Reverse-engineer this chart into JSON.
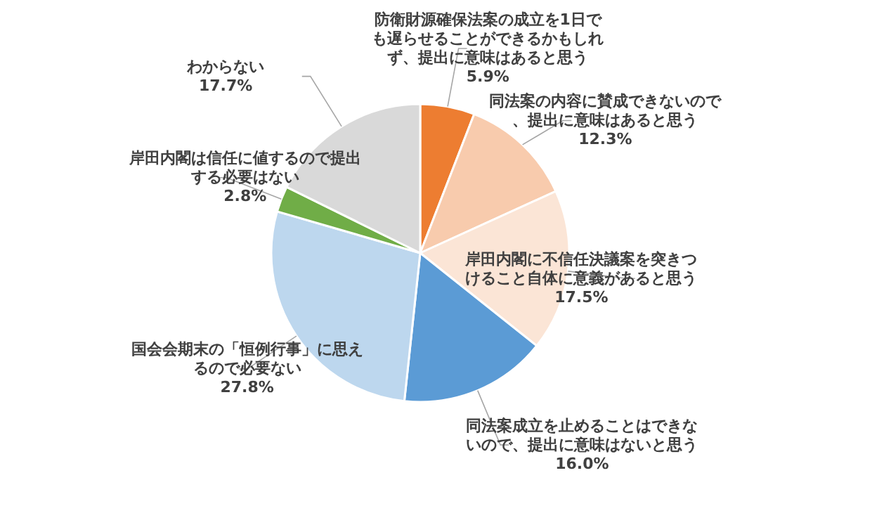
{
  "chart_data": {
    "type": "pie",
    "categories": [
      "防衛財源確保法案の成立を1日でも遅らせることができるかもしれず、提出に意味はあると思う",
      "同法案の内容に賛成できないので、提出に意味はあると思う",
      "岸田内閣に不信任決議案を突きつけること自体に意義があると思う",
      "同法案成立を止めることはできないので、提出に意味はないと思う",
      "国会会期末の「恒例行事」に思えるので必要ない",
      "岸田内閣は信任に値するので提出する必要はない",
      "わからない"
    ],
    "values": [
      5.9,
      12.3,
      17.5,
      16.0,
      27.8,
      2.8,
      17.7
    ],
    "value_labels": [
      "5.9%",
      "12.3%",
      "17.5%",
      "16.0%",
      "27.8%",
      "2.8%",
      "17.7%"
    ],
    "colors": [
      "#ed7d31",
      "#f8cbad",
      "#fbe5d6",
      "#5b9bd5",
      "#bdd7ee",
      "#70ad47",
      "#d9d9d9"
    ]
  }
}
